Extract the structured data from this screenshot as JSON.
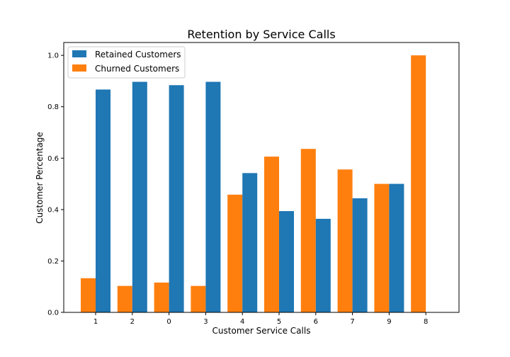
{
  "chart_data": {
    "type": "bar",
    "title": "Retention by Service Calls",
    "xlabel": "Customer Service Calls",
    "ylabel": "Customer Percentage",
    "categories": [
      "1",
      "2",
      "0",
      "3",
      "4",
      "5",
      "6",
      "7",
      "9",
      "8"
    ],
    "series": [
      {
        "name": "Churned Customers",
        "color": "#ff7f0e",
        "values": [
          0.133,
          0.103,
          0.116,
          0.103,
          0.458,
          0.606,
          0.636,
          0.556,
          0.5,
          1.0
        ]
      },
      {
        "name": "Retained Customers",
        "color": "#1f77b4",
        "values": [
          0.867,
          0.897,
          0.884,
          0.897,
          0.542,
          0.394,
          0.364,
          0.444,
          0.5,
          0.0
        ]
      }
    ],
    "ylim": [
      0,
      1.05
    ],
    "yticks": [
      "0.0",
      "0.2",
      "0.4",
      "0.6",
      "0.8",
      "1.0"
    ],
    "grid": false,
    "legend_position": "top-left"
  }
}
